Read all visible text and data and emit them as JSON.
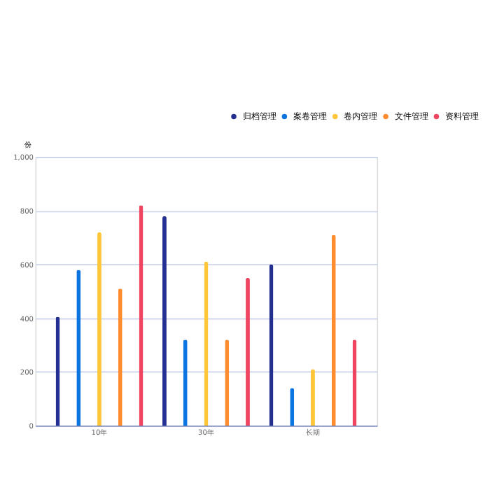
{
  "chart_data": {
    "type": "bar",
    "ylabel": "份",
    "categories": [
      "10年",
      "30年",
      "长期"
    ],
    "series": [
      {
        "name": "归档管理",
        "color": "#24308f",
        "values": [
          405,
          780,
          600
        ]
      },
      {
        "name": "案卷管理",
        "color": "#0a74e0",
        "values": [
          580,
          320,
          140
        ]
      },
      {
        "name": "卷内管理",
        "color": "#ffc63a",
        "values": [
          720,
          610,
          210
        ]
      },
      {
        "name": "文件管理",
        "color": "#ff8c2e",
        "values": [
          510,
          320,
          710
        ]
      },
      {
        "name": "资料管理",
        "color": "#ef4560",
        "values": [
          820,
          550,
          320
        ]
      }
    ],
    "ylim": [
      0,
      1000
    ],
    "yticks": [
      0,
      200,
      400,
      600,
      800,
      {
        "value": 1000,
        "label": "1,000"
      }
    ],
    "grid": "y",
    "legend": "top right"
  }
}
